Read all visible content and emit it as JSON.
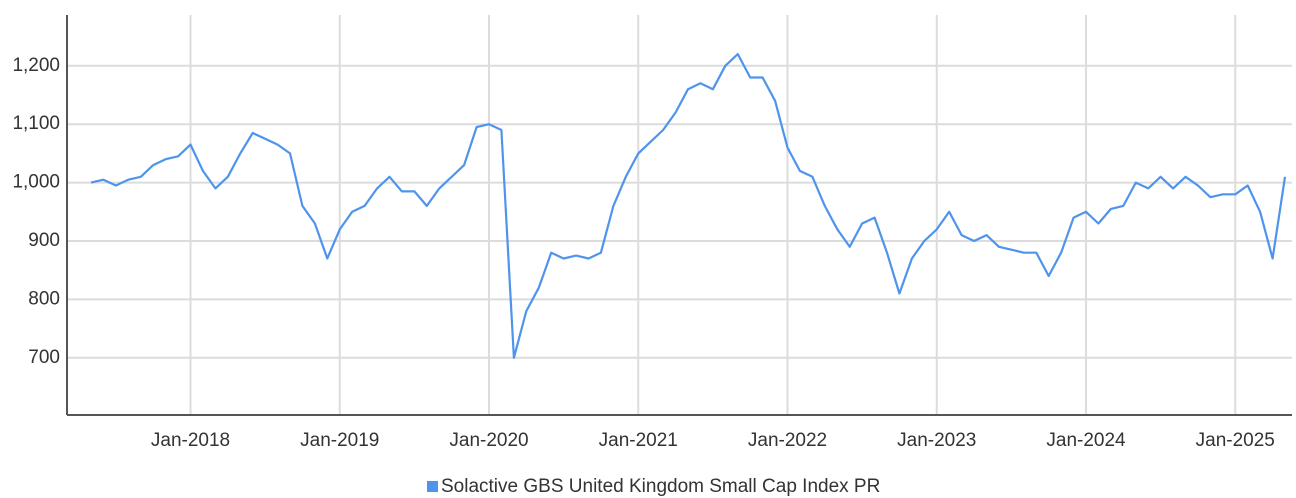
{
  "chart_data": {
    "type": "line",
    "x": [
      "May-2017",
      "Jun-2017",
      "Jul-2017",
      "Aug-2017",
      "Sep-2017",
      "Oct-2017",
      "Nov-2017",
      "Dec-2017",
      "Jan-2018",
      "Feb-2018",
      "Mar-2018",
      "Apr-2018",
      "May-2018",
      "Jun-2018",
      "Jul-2018",
      "Aug-2018",
      "Sep-2018",
      "Oct-2018",
      "Nov-2018",
      "Dec-2018",
      "Jan-2019",
      "Feb-2019",
      "Mar-2019",
      "Apr-2019",
      "May-2019",
      "Jun-2019",
      "Jul-2019",
      "Aug-2019",
      "Sep-2019",
      "Oct-2019",
      "Nov-2019",
      "Dec-2019",
      "Jan-2020",
      "Feb-2020",
      "Mar-2020",
      "Apr-2020",
      "May-2020",
      "Jun-2020",
      "Jul-2020",
      "Aug-2020",
      "Sep-2020",
      "Oct-2020",
      "Nov-2020",
      "Dec-2020",
      "Jan-2021",
      "Feb-2021",
      "Mar-2021",
      "Apr-2021",
      "May-2021",
      "Jun-2021",
      "Jul-2021",
      "Aug-2021",
      "Sep-2021",
      "Oct-2021",
      "Nov-2021",
      "Dec-2021",
      "Jan-2022",
      "Feb-2022",
      "Mar-2022",
      "Apr-2022",
      "May-2022",
      "Jun-2022",
      "Jul-2022",
      "Aug-2022",
      "Sep-2022",
      "Oct-2022",
      "Nov-2022",
      "Dec-2022",
      "Jan-2023",
      "Feb-2023",
      "Mar-2023",
      "Apr-2023",
      "May-2023",
      "Jun-2023",
      "Jul-2023",
      "Aug-2023",
      "Sep-2023",
      "Oct-2023",
      "Nov-2023",
      "Dec-2023",
      "Jan-2024",
      "Feb-2024",
      "Mar-2024",
      "Apr-2024",
      "May-2024",
      "Jun-2024",
      "Jul-2024",
      "Aug-2024",
      "Sep-2024",
      "Oct-2024",
      "Nov-2024",
      "Dec-2024",
      "Jan-2025",
      "Feb-2025",
      "Mar-2025",
      "Apr-2025",
      "May-2025"
    ],
    "series": [
      {
        "name": "Solactive GBS United Kingdom Small Cap Index PR",
        "color": "#4f94ec",
        "values": [
          1000,
          1005,
          995,
          1005,
          1010,
          1030,
          1040,
          1045,
          1065,
          1020,
          990,
          1010,
          1050,
          1085,
          1075,
          1065,
          1050,
          960,
          930,
          870,
          920,
          950,
          960,
          990,
          1010,
          985,
          985,
          960,
          990,
          1010,
          1030,
          1095,
          1100,
          1090,
          700,
          780,
          820,
          880,
          870,
          875,
          870,
          880,
          960,
          1010,
          1050,
          1070,
          1090,
          1120,
          1160,
          1170,
          1160,
          1200,
          1220,
          1180,
          1180,
          1140,
          1060,
          1020,
          1010,
          960,
          920,
          890,
          930,
          940,
          880,
          810,
          870,
          900,
          920,
          950,
          910,
          900,
          910,
          890,
          885,
          880,
          880,
          840,
          880,
          940,
          950,
          930,
          955,
          960,
          1000,
          990,
          1010,
          990,
          1010,
          995,
          975,
          980,
          980,
          995,
          950,
          870,
          1010
        ]
      }
    ],
    "xticks": [
      "Jan-2018",
      "Jan-2019",
      "Jan-2020",
      "Jan-2021",
      "Jan-2022",
      "Jan-2023",
      "Jan-2024",
      "Jan-2025"
    ],
    "ylim": [
      602,
      1287
    ],
    "yticks": [
      700,
      800,
      900,
      {
        "value": 1000,
        "label": "1,000"
      },
      {
        "value": 1100,
        "label": "1,100"
      },
      {
        "value": 1200,
        "label": "1,200"
      }
    ],
    "grid": true,
    "legend": "bottom"
  }
}
